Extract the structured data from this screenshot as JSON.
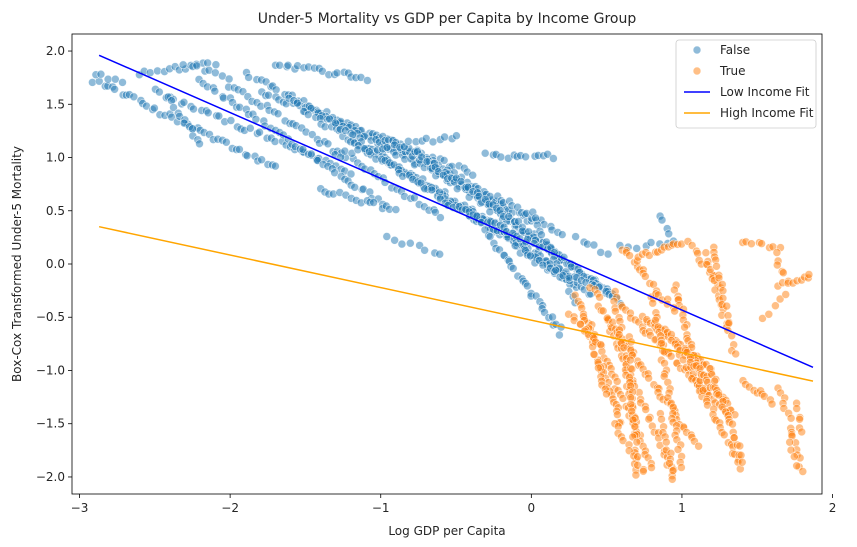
{
  "chart_data": {
    "type": "scatter",
    "title": "Under-5 Mortality vs GDP per Capita by Income Group",
    "xlabel": "Log GDP per Capita",
    "ylabel": "Box-Cox Transformed Under-5 Mortality",
    "xlim": [
      -3.05,
      1.93
    ],
    "ylim": [
      -2.16,
      2.16
    ],
    "xticks": [
      -3,
      -2,
      -1,
      0,
      1,
      2
    ],
    "yticks": [
      -2.0,
      -1.5,
      -1.0,
      -0.5,
      0.0,
      0.5,
      1.0,
      1.5,
      2.0
    ],
    "grid": false,
    "legend_position": "top-right",
    "series": [
      {
        "name": "False",
        "kind": "scatter",
        "color": "#1f77b4",
        "opacity": 0.5,
        "trails": [
          {
            "from": [
              -2.9,
              1.73
            ],
            "to": [
              -1.7,
              0.9
            ],
            "n": 42
          },
          {
            "from": [
              -2.5,
              1.62
            ],
            "to": [
              -1.2,
              0.87
            ],
            "n": 40
          },
          {
            "from": [
              -2.4,
              1.55
            ],
            "to": [
              -2.2,
              1.15
            ],
            "n": 12
          },
          {
            "from": [
              -2.2,
              1.72
            ],
            "to": [
              -1.0,
              0.58
            ],
            "n": 45
          },
          {
            "from": [
              -2.0,
              1.68
            ],
            "to": [
              -0.6,
              0.45
            ],
            "n": 48
          },
          {
            "from": [
              -1.9,
              1.8
            ],
            "to": [
              -0.2,
              0.55
            ],
            "n": 55
          },
          {
            "from": [
              -1.8,
              1.62
            ],
            "to": [
              -0.4,
              0.85
            ],
            "n": 48
          },
          {
            "from": [
              -1.6,
              1.55
            ],
            "to": [
              0.0,
              0.4
            ],
            "n": 55
          },
          {
            "from": [
              -1.5,
              1.42
            ],
            "to": [
              -0.1,
              0.25
            ],
            "n": 50
          },
          {
            "from": [
              -1.3,
              1.3
            ],
            "to": [
              0.3,
              -0.2
            ],
            "n": 55
          },
          {
            "from": [
              -1.2,
              1.15
            ],
            "to": [
              0.1,
              0.05
            ],
            "n": 48
          },
          {
            "from": [
              -1.0,
              1.2
            ],
            "to": [
              0.2,
              0.3
            ],
            "n": 45
          },
          {
            "from": [
              -0.8,
              1.1
            ],
            "to": [
              0.3,
              -0.05
            ],
            "n": 42
          },
          {
            "from": [
              -0.7,
              0.95
            ],
            "to": [
              0.5,
              -0.25
            ],
            "n": 45
          },
          {
            "from": [
              -0.5,
              0.8
            ],
            "to": [
              0.6,
              -0.35
            ],
            "n": 42
          },
          {
            "from": [
              -0.4,
              0.5
            ],
            "to": [
              0.4,
              -0.3
            ],
            "n": 32
          },
          {
            "from": [
              -0.3,
              0.3
            ],
            "to": [
              0.2,
              -0.65
            ],
            "n": 30
          },
          {
            "from": [
              -0.6,
              0.6
            ],
            "to": [
              0.15,
              0.1
            ],
            "n": 28
          },
          {
            "from": [
              -1.4,
              0.7
            ],
            "to": [
              -0.9,
              0.5
            ],
            "n": 16
          },
          {
            "from": [
              -2.6,
              1.8
            ],
            "to": [
              -2.1,
              1.88
            ],
            "n": 14
          },
          {
            "from": [
              -1.7,
              1.88
            ],
            "to": [
              -1.1,
              1.74
            ],
            "n": 20
          },
          {
            "from": [
              -1.3,
              1.02
            ],
            "to": [
              -0.5,
              1.2
            ],
            "n": 22
          },
          {
            "from": [
              -0.3,
              1.02
            ],
            "to": [
              0.15,
              1.01
            ],
            "n": 14
          },
          {
            "from": [
              0.0,
              0.5
            ],
            "to": [
              0.3,
              -0.35
            ],
            "n": 16
          },
          {
            "from": [
              0.1,
              0.0
            ],
            "to": [
              0.55,
              -0.28
            ],
            "n": 16
          },
          {
            "from": [
              -0.1,
              0.15
            ],
            "to": [
              0.25,
              -0.15
            ],
            "n": 14
          },
          {
            "from": [
              -2.9,
              1.78
            ],
            "to": [
              -2.7,
              1.7
            ],
            "n": 5
          },
          {
            "from": [
              -2.3,
              1.88
            ],
            "to": [
              -2.0,
              1.75
            ],
            "n": 8
          },
          {
            "from": [
              -0.95,
              0.25
            ],
            "to": [
              -0.6,
              0.1
            ],
            "n": 8
          },
          {
            "from": [
              0.3,
              0.25
            ],
            "to": [
              0.5,
              0.1
            ],
            "n": 6
          },
          {
            "from": [
              0.6,
              0.15
            ],
            "to": [
              0.95,
              0.2
            ],
            "n": 8
          },
          {
            "from": [
              0.85,
              0.45
            ],
            "to": [
              0.92,
              0.3
            ],
            "n": 4
          }
        ]
      },
      {
        "name": "True",
        "kind": "scatter",
        "color": "#ff7f0e",
        "opacity": 0.5,
        "trails": [
          {
            "from": [
              0.3,
              -0.3
            ],
            "to": [
              0.8,
              -1.9
            ],
            "n": 40
          },
          {
            "from": [
              0.4,
              -0.2
            ],
            "to": [
              0.95,
              -2.0
            ],
            "n": 42
          },
          {
            "from": [
              0.5,
              -0.5
            ],
            "to": [
              1.1,
              -1.7
            ],
            "n": 40
          },
          {
            "from": [
              0.55,
              -0.25
            ],
            "to": [
              0.7,
              -1.6
            ],
            "n": 30
          },
          {
            "from": [
              0.6,
              -0.4
            ],
            "to": [
              1.3,
              -1.4
            ],
            "n": 40
          },
          {
            "from": [
              0.65,
              -0.7
            ],
            "to": [
              0.7,
              -2.0
            ],
            "n": 26
          },
          {
            "from": [
              0.75,
              -0.5
            ],
            "to": [
              1.2,
              -1.0
            ],
            "n": 30
          },
          {
            "from": [
              0.8,
              -0.3
            ],
            "to": [
              1.0,
              -1.9
            ],
            "n": 36
          },
          {
            "from": [
              0.9,
              -0.6
            ],
            "to": [
              1.4,
              -1.9
            ],
            "n": 38
          },
          {
            "from": [
              0.95,
              -0.2
            ],
            "to": [
              1.15,
              -1.2
            ],
            "n": 26
          },
          {
            "from": [
              1.0,
              -0.8
            ],
            "to": [
              1.35,
              -1.4
            ],
            "n": 26
          },
          {
            "from": [
              0.45,
              -0.9
            ],
            "to": [
              0.6,
              -1.5
            ],
            "n": 18
          },
          {
            "from": [
              0.35,
              -0.5
            ],
            "to": [
              0.5,
              -1.2
            ],
            "n": 18
          },
          {
            "from": [
              1.2,
              -1.0
            ],
            "to": [
              1.4,
              -1.85
            ],
            "n": 22
          },
          {
            "from": [
              0.6,
              0.15
            ],
            "to": [
              0.95,
              -0.45
            ],
            "n": 20
          },
          {
            "from": [
              0.7,
              0.05
            ],
            "to": [
              1.0,
              0.2
            ],
            "n": 14
          },
          {
            "from": [
              1.05,
              0.2
            ],
            "to": [
              1.25,
              -0.2
            ],
            "n": 12
          },
          {
            "from": [
              1.15,
              0.1
            ],
            "to": [
              1.3,
              -0.6
            ],
            "n": 14
          },
          {
            "from": [
              1.2,
              0.18
            ],
            "to": [
              1.35,
              -0.85
            ],
            "n": 20
          },
          {
            "from": [
              1.4,
              0.2
            ],
            "to": [
              1.65,
              0.15
            ],
            "n": 8
          },
          {
            "from": [
              1.62,
              0.1
            ],
            "to": [
              1.67,
              -0.1
            ],
            "n": 5
          },
          {
            "from": [
              1.65,
              -0.2
            ],
            "to": [
              1.85,
              -0.12
            ],
            "n": 10
          },
          {
            "from": [
              1.55,
              -0.5
            ],
            "to": [
              1.7,
              -0.3
            ],
            "n": 5
          },
          {
            "from": [
              1.4,
              -1.1
            ],
            "to": [
              1.6,
              -1.3
            ],
            "n": 10
          },
          {
            "from": [
              1.65,
              -1.15
            ],
            "to": [
              1.8,
              -1.94
            ],
            "n": 16
          },
          {
            "from": [
              1.75,
              -1.3
            ],
            "to": [
              1.8,
              -1.6
            ],
            "n": 6
          },
          {
            "from": [
              1.72,
              -1.6
            ],
            "to": [
              1.75,
              -1.9
            ],
            "n": 5
          },
          {
            "from": [
              0.25,
              -0.45
            ],
            "to": [
              0.45,
              -0.75
            ],
            "n": 10
          },
          {
            "from": [
              0.55,
              -1.5
            ],
            "to": [
              0.75,
              -1.95
            ],
            "n": 12
          },
          {
            "from": [
              0.85,
              -1.4
            ],
            "to": [
              0.95,
              -2.0
            ],
            "n": 12
          }
        ]
      },
      {
        "name": "Low Income Fit",
        "kind": "line",
        "color": "#0000ff",
        "x": [
          -2.87,
          1.87
        ],
        "y": [
          1.96,
          -0.97
        ]
      },
      {
        "name": "High Income Fit",
        "kind": "line",
        "color": "#ffa500",
        "x": [
          -2.87,
          1.87
        ],
        "y": [
          0.35,
          -1.1
        ]
      }
    ]
  }
}
